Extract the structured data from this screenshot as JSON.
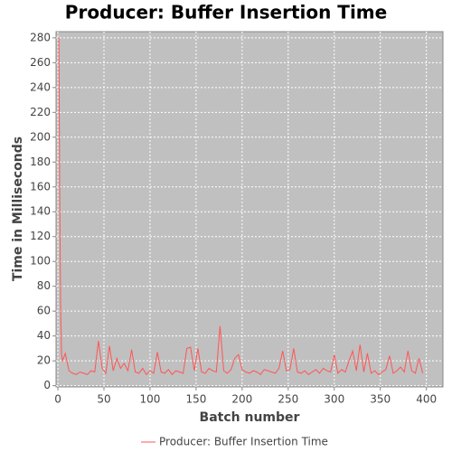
{
  "chart_data": {
    "type": "line",
    "title": "Producer: Buffer Insertion Time",
    "x_label": "Batch number",
    "y_label": "Time in Milliseconds",
    "x": [
      1,
      2,
      3,
      4,
      5,
      8,
      12,
      16,
      20,
      24,
      28,
      32,
      36,
      40,
      44,
      48,
      52,
      56,
      60,
      64,
      68,
      72,
      76,
      80,
      84,
      88,
      92,
      96,
      100,
      104,
      108,
      112,
      116,
      120,
      124,
      128,
      132,
      136,
      140,
      144,
      148,
      152,
      156,
      160,
      164,
      168,
      172,
      176,
      180,
      184,
      188,
      192,
      196,
      200,
      204,
      208,
      212,
      216,
      220,
      224,
      228,
      232,
      236,
      240,
      244,
      248,
      252,
      256,
      260,
      264,
      268,
      272,
      276,
      280,
      284,
      288,
      292,
      296,
      300,
      304,
      308,
      312,
      316,
      320,
      324,
      328,
      332,
      336,
      340,
      344,
      348,
      352,
      356,
      360,
      364,
      368,
      372,
      376,
      380,
      384,
      388,
      392,
      396
    ],
    "series": [
      {
        "name": "Producer: Buffer Insertion Time",
        "color": "#ff5555",
        "values": [
          280,
          150,
          60,
          25,
          20,
          26,
          12,
          10,
          9,
          11,
          10,
          9,
          12,
          11,
          36,
          14,
          10,
          32,
          12,
          22,
          14,
          18,
          12,
          29,
          11,
          10,
          14,
          9,
          12,
          10,
          27,
          11,
          10,
          13,
          9,
          12,
          11,
          10,
          30,
          31,
          12,
          30,
          11,
          10,
          14,
          12,
          11,
          48,
          12,
          10,
          13,
          22,
          25,
          13,
          11,
          10,
          12,
          11,
          9,
          13,
          12,
          11,
          10,
          14,
          28,
          12,
          13,
          30,
          11,
          10,
          12,
          9,
          11,
          13,
          10,
          14,
          12,
          11,
          25,
          10,
          13,
          11,
          20,
          28,
          12,
          33,
          11,
          26,
          10,
          12,
          9,
          11,
          13,
          24,
          10,
          12,
          15,
          11,
          28,
          12,
          10,
          22,
          10
        ]
      }
    ],
    "xlim": [
      -2,
      418
    ],
    "ylim": [
      -1,
      285
    ],
    "xticks": [
      0,
      50,
      100,
      150,
      200,
      250,
      300,
      350,
      400
    ],
    "yticks": [
      0,
      20,
      40,
      60,
      80,
      100,
      120,
      140,
      160,
      180,
      200,
      220,
      240,
      260,
      280
    ],
    "grid": true,
    "legend": "bottom"
  }
}
